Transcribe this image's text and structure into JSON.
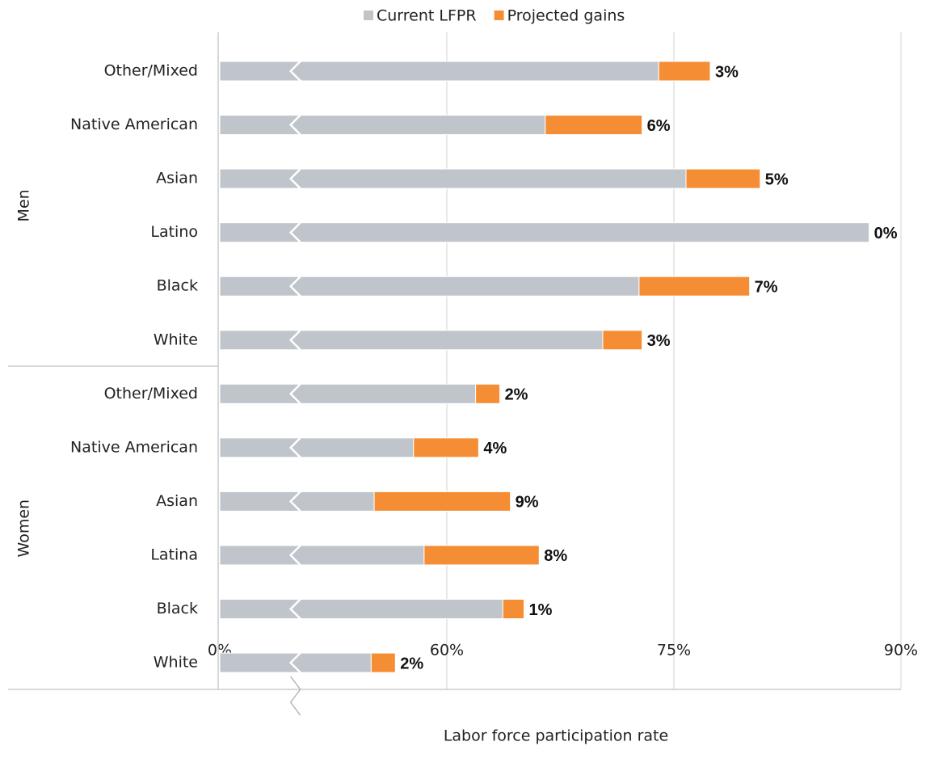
{
  "chart_data": {
    "type": "stacked_barh",
    "groups": [
      {
        "name": "Men",
        "categories": [
          "Other/Mixed",
          "Native American",
          "Asian",
          "Latino",
          "Black",
          "White"
        ]
      },
      {
        "name": "Women",
        "categories": [
          "Other/Mixed",
          "Native American",
          "Asian",
          "Latina",
          "Black",
          "White"
        ]
      }
    ],
    "series": [
      {
        "name": "Current LFPR",
        "color": "#bfc5cb",
        "values": [
          74.0,
          66.5,
          75.8,
          87.9,
          72.7,
          70.3,
          61.9,
          57.8,
          55.2,
          58.5,
          63.7,
          55.0
        ]
      },
      {
        "name": "Projected gains",
        "color": "#f58d35",
        "values": [
          3.4,
          6.4,
          4.9,
          0,
          7.3,
          2.6,
          1.6,
          4.3,
          9.0,
          7.6,
          1.4,
          1.6
        ],
        "value_labels": [
          "3%",
          "6%",
          "5%",
          "0%",
          "7%",
          "3%",
          "2%",
          "4%",
          "9%",
          "8%",
          "1%",
          "2%"
        ]
      }
    ],
    "x_label": "Labor force participation rate",
    "xlim": [
      0,
      90
    ],
    "xticks": [
      {
        "value": 0,
        "label": "0%"
      },
      {
        "value": 60,
        "label": "60%"
      },
      {
        "value": 75,
        "label": "75%"
      },
      {
        "value": 90,
        "label": "90%"
      }
    ],
    "axis_break": true,
    "grid": true,
    "legend": "top"
  }
}
